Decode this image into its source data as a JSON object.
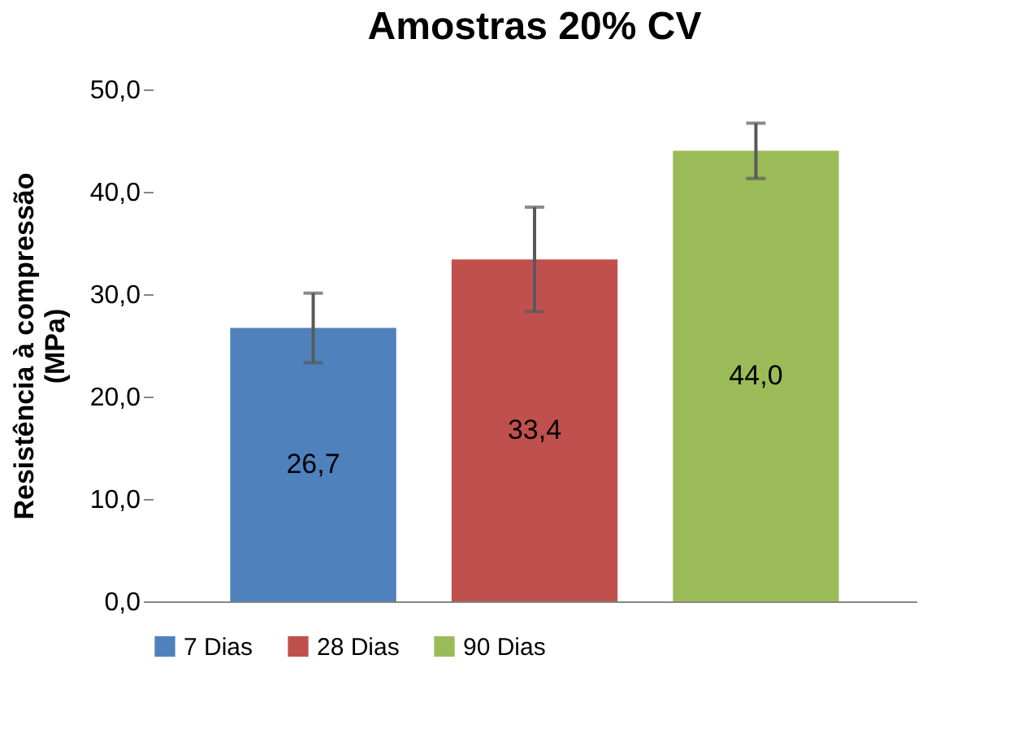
{
  "chart_data": {
    "type": "bar",
    "title": "Amostras 20% CV",
    "ylabel": "Resistência à compressão (MPa)",
    "categories": [
      null,
      null,
      null
    ],
    "series": [
      {
        "name": "7 Dias",
        "color": "#4f81bd",
        "values": [
          26.7,
          null,
          null
        ],
        "errors": [
          3.4,
          null,
          null
        ],
        "value_labels": [
          "26,7",
          null,
          null
        ]
      },
      {
        "name": "28 Dias",
        "color": "#c0504d",
        "values": [
          null,
          33.4,
          null
        ],
        "errors": [
          null,
          5.1,
          null
        ],
        "value_labels": [
          null,
          "33,4",
          null
        ]
      },
      {
        "name": "90 Dias",
        "color": "#9bbb59",
        "values": [
          null,
          null,
          44.0
        ],
        "errors": [
          null,
          null,
          2.7
        ],
        "value_labels": [
          null,
          null,
          "44,0"
        ]
      }
    ],
    "ylim": [
      0,
      50
    ],
    "yticks": [
      {
        "value": 0,
        "label": "0,0"
      },
      {
        "value": 10,
        "label": "10,0"
      },
      {
        "value": 20,
        "label": "20,0"
      },
      {
        "value": 30,
        "label": "30,0"
      },
      {
        "value": 40,
        "label": "40,0"
      },
      {
        "value": 50,
        "label": "50,0"
      }
    ],
    "grid": false,
    "legend": "bottom"
  }
}
